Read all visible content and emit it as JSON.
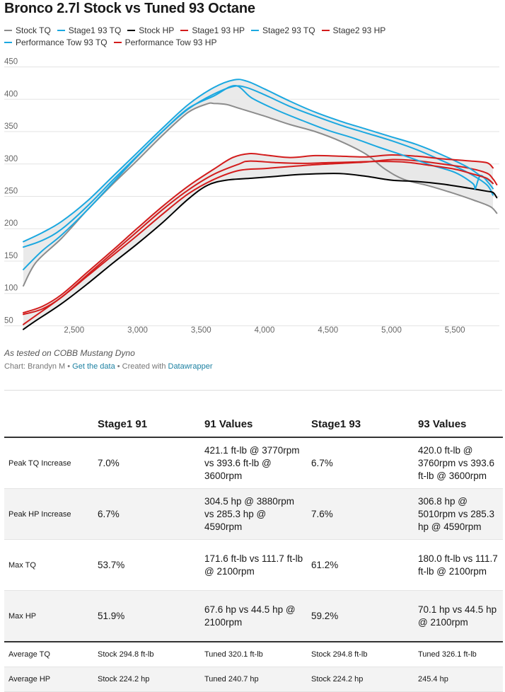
{
  "page": {
    "title": "Bronco 2.7l Stock vs Tuned 93 Octane",
    "source_note": "As tested on COBB Mustang Dyno",
    "credit_prefix": "Chart: Brandyn M • ",
    "credit_link1": "Get the data",
    "credit_mid": " • Created with ",
    "credit_link2": "Datawrapper"
  },
  "colors": {
    "stock_tq": "#8c8c8c",
    "stock_hp": "#000000",
    "tq_blue": "#1ba8e0",
    "hp_red": "#d31c1c",
    "band": "#e8e8e8",
    "grid": "#e3e3e3",
    "link": "#1d81a2"
  },
  "chart_data": {
    "type": "line",
    "title": "Bronco 2.7l Stock vs Tuned 93 Octane",
    "xlabel": "",
    "ylabel": "",
    "xlim": [
      2100,
      5850
    ],
    "ylim": [
      45,
      455
    ],
    "x_ticks": [
      2500,
      3000,
      3500,
      4000,
      4500,
      5000,
      5500
    ],
    "x_tick_labels": [
      "2,500",
      "3,000",
      "3,500",
      "4,000",
      "4,500",
      "5,000",
      "5,500"
    ],
    "y_ticks": [
      50,
      100,
      150,
      200,
      250,
      300,
      350,
      400,
      450
    ],
    "y_tick_labels": [
      "50",
      "100",
      "150",
      "200",
      "250",
      "300",
      "350",
      "400",
      "450"
    ],
    "grid": true,
    "legend_position": "top",
    "series": [
      {
        "name": "Stock TQ",
        "color": "#8c8c8c",
        "width": 2,
        "points": [
          [
            2100,
            111.7
          ],
          [
            2200,
            148
          ],
          [
            2400,
            185
          ],
          [
            2600,
            228
          ],
          [
            2800,
            268
          ],
          [
            3000,
            306
          ],
          [
            3200,
            345
          ],
          [
            3400,
            380
          ],
          [
            3550,
            393
          ],
          [
            3600,
            393.6
          ],
          [
            3700,
            392
          ],
          [
            3800,
            386
          ],
          [
            4000,
            374
          ],
          [
            4200,
            361
          ],
          [
            4400,
            350
          ],
          [
            4600,
            335
          ],
          [
            4800,
            315
          ],
          [
            4950,
            292
          ],
          [
            5100,
            276
          ],
          [
            5300,
            266
          ],
          [
            5500,
            254
          ],
          [
            5650,
            244
          ],
          [
            5780,
            234
          ],
          [
            5830,
            224
          ]
        ]
      },
      {
        "name": "Stage1 93 TQ",
        "color": "#1ba8e0",
        "width": 2,
        "points": [
          [
            2100,
            137
          ],
          [
            2250,
            166
          ],
          [
            2400,
            190
          ],
          [
            2600,
            228
          ],
          [
            2800,
            270
          ],
          [
            3000,
            312
          ],
          [
            3200,
            351
          ],
          [
            3400,
            385
          ],
          [
            3600,
            408
          ],
          [
            3760,
            420
          ],
          [
            3860,
            418
          ],
          [
            4000,
            407
          ],
          [
            4200,
            389
          ],
          [
            4400,
            374
          ],
          [
            4600,
            360
          ],
          [
            4800,
            348
          ],
          [
            5000,
            336
          ],
          [
            5200,
            322
          ],
          [
            5400,
            305
          ],
          [
            5600,
            287
          ],
          [
            5750,
            268
          ],
          [
            5800,
            252
          ]
        ]
      },
      {
        "name": "Stock HP",
        "color": "#000000",
        "width": 2,
        "points": [
          [
            2100,
            44.5
          ],
          [
            2200,
            58
          ],
          [
            2400,
            84
          ],
          [
            2600,
            114
          ],
          [
            2800,
            146
          ],
          [
            3000,
            177
          ],
          [
            3200,
            210
          ],
          [
            3400,
            246
          ],
          [
            3550,
            267
          ],
          [
            3700,
            275
          ],
          [
            3900,
            278
          ],
          [
            4100,
            281
          ],
          [
            4300,
            284
          ],
          [
            4590,
            285.3
          ],
          [
            4800,
            281
          ],
          [
            5000,
            275
          ],
          [
            5200,
            273
          ],
          [
            5400,
            269
          ],
          [
            5600,
            263
          ],
          [
            5750,
            258
          ],
          [
            5800,
            256
          ],
          [
            5830,
            248
          ]
        ]
      },
      {
        "name": "Stage1 93 HP",
        "color": "#d31c1c",
        "width": 2,
        "points": [
          [
            2100,
            52
          ],
          [
            2200,
            66
          ],
          [
            2400,
            94
          ],
          [
            2600,
            126
          ],
          [
            2800,
            158
          ],
          [
            3000,
            190
          ],
          [
            3200,
            223
          ],
          [
            3400,
            254
          ],
          [
            3600,
            276
          ],
          [
            3800,
            290
          ],
          [
            4000,
            293
          ],
          [
            4200,
            296
          ],
          [
            4400,
            299
          ],
          [
            4600,
            301
          ],
          [
            4800,
            303
          ],
          [
            5010,
            306.8
          ],
          [
            5200,
            305
          ],
          [
            5400,
            300
          ],
          [
            5600,
            294
          ],
          [
            5750,
            286
          ],
          [
            5800,
            277
          ],
          [
            5830,
            268
          ]
        ]
      },
      {
        "name": "Stage2 93 TQ",
        "color": "#1ba8e0",
        "width": 2,
        "points": [
          [
            2100,
            180.0
          ],
          [
            2250,
            194
          ],
          [
            2400,
            211
          ],
          [
            2600,
            242
          ],
          [
            2800,
            280
          ],
          [
            3000,
            318
          ],
          [
            3200,
            356
          ],
          [
            3400,
            392
          ],
          [
            3600,
            418
          ],
          [
            3760,
            430
          ],
          [
            3860,
            428
          ],
          [
            4000,
            416
          ],
          [
            4200,
            397
          ],
          [
            4400,
            380
          ],
          [
            4600,
            366
          ],
          [
            4800,
            354
          ],
          [
            5000,
            342
          ],
          [
            5200,
            330
          ],
          [
            5400,
            314
          ],
          [
            5600,
            295
          ],
          [
            5700,
            282
          ],
          [
            5760,
            276
          ],
          [
            5800,
            270
          ]
        ]
      },
      {
        "name": "Stage2 93 HP",
        "color": "#d31c1c",
        "width": 2,
        "points": [
          [
            2100,
            70.1
          ],
          [
            2250,
            80
          ],
          [
            2400,
            98
          ],
          [
            2600,
            132
          ],
          [
            2800,
            166
          ],
          [
            3000,
            201
          ],
          [
            3200,
            235
          ],
          [
            3400,
            266
          ],
          [
            3600,
            292
          ],
          [
            3750,
            310
          ],
          [
            3880,
            316
          ],
          [
            4000,
            314
          ],
          [
            4200,
            310
          ],
          [
            4400,
            313
          ],
          [
            4600,
            312
          ],
          [
            4800,
            311
          ],
          [
            5000,
            314
          ],
          [
            5200,
            312
          ],
          [
            5400,
            308
          ],
          [
            5600,
            305
          ],
          [
            5750,
            302
          ],
          [
            5800,
            294
          ]
        ]
      },
      {
        "name": "Performance Tow 93 TQ",
        "color": "#1ba8e0",
        "width": 2,
        "points": [
          [
            2100,
            171.6
          ],
          [
            2250,
            182
          ],
          [
            2400,
            199
          ],
          [
            2600,
            234
          ],
          [
            2800,
            274
          ],
          [
            3000,
            313
          ],
          [
            3200,
            351
          ],
          [
            3400,
            386
          ],
          [
            3600,
            405
          ],
          [
            3770,
            421.1
          ],
          [
            3900,
            402
          ],
          [
            4100,
            383
          ],
          [
            4300,
            367
          ],
          [
            4500,
            352
          ],
          [
            4700,
            340
          ],
          [
            4900,
            326
          ],
          [
            5100,
            313
          ],
          [
            5300,
            299
          ],
          [
            5500,
            287
          ],
          [
            5640,
            270
          ],
          [
            5660,
            262
          ],
          [
            5700,
            282
          ],
          [
            5760,
            272
          ],
          [
            5800,
            262
          ]
        ]
      },
      {
        "name": "Performance Tow 93 HP",
        "color": "#d31c1c",
        "width": 2,
        "points": [
          [
            2100,
            67.6
          ],
          [
            2250,
            76
          ],
          [
            2400,
            94
          ],
          [
            2600,
            128
          ],
          [
            2800,
            162
          ],
          [
            3000,
            196
          ],
          [
            3200,
            230
          ],
          [
            3400,
            260
          ],
          [
            3600,
            284
          ],
          [
            3800,
            300
          ],
          [
            3880,
            304.5
          ],
          [
            4100,
            302
          ],
          [
            4300,
            301
          ],
          [
            4500,
            302
          ],
          [
            4700,
            303
          ],
          [
            4900,
            304
          ],
          [
            5100,
            303
          ],
          [
            5300,
            298
          ],
          [
            5500,
            292
          ],
          [
            5650,
            284
          ],
          [
            5750,
            278
          ],
          [
            5800,
            270
          ]
        ]
      }
    ],
    "bands": [
      {
        "upper": "Stage2 93 TQ",
        "lower": "Stock TQ"
      },
      {
        "upper": "Stage2 93 HP",
        "lower": "Stock HP"
      }
    ]
  },
  "legend": [
    {
      "label": "Stock TQ",
      "color": "#8c8c8c"
    },
    {
      "label": "Stage1 93 TQ",
      "color": "#1ba8e0"
    },
    {
      "label": "Stock HP",
      "color": "#000000"
    },
    {
      "label": "Stage1 93 HP",
      "color": "#d31c1c"
    },
    {
      "label": "Stage2 93 TQ",
      "color": "#1ba8e0"
    },
    {
      "label": "Stage2 93 HP",
      "color": "#d31c1c"
    },
    {
      "label": "Performance Tow 93 TQ",
      "color": "#1ba8e0"
    },
    {
      "label": "Performance Tow 93 HP",
      "color": "#d31c1c"
    }
  ],
  "table": {
    "headers": [
      "",
      "Stage1 91",
      "91 Values",
      "Stage1 93",
      "93 Values"
    ],
    "rows": [
      [
        "Peak TQ Increase",
        "7.0%",
        "421.1 ft-lb @ 3770rpm vs 393.6 ft-lb @ 3600rpm",
        "6.7%",
        "420.0 ft-lb @ 3760rpm vs 393.6 ft-lb @ 3600rpm"
      ],
      [
        "Peak HP Increase",
        "6.7%",
        "304.5 hp @ 3880rpm vs 285.3 hp @ 4590rpm",
        "7.6%",
        "306.8 hp @ 5010rpm vs 285.3 hp @ 4590rpm"
      ],
      [
        "Max TQ",
        "53.7%",
        "171.6 ft-lb vs 111.7 ft-lb @ 2100rpm",
        "61.2%",
        "180.0 ft-lb vs 111.7 ft-lb @ 2100rpm"
      ],
      [
        "Max HP",
        "51.9%",
        "67.6 hp vs 44.5 hp @ 2100rpm",
        "59.2%",
        "70.1 hp vs 44.5 hp @ 2100rpm"
      ],
      [
        "Average TQ",
        "Stock 294.8 ft-lb",
        "Tuned 320.1 ft-lb",
        "Stock 294.8 ft-lb",
        "Tuned 326.1 ft-lb"
      ],
      [
        "Average HP",
        "Stock 224.2 hp",
        "Tuned 240.7 hp",
        "Stock 224.2 hp",
        "245.4 hp"
      ]
    ]
  }
}
